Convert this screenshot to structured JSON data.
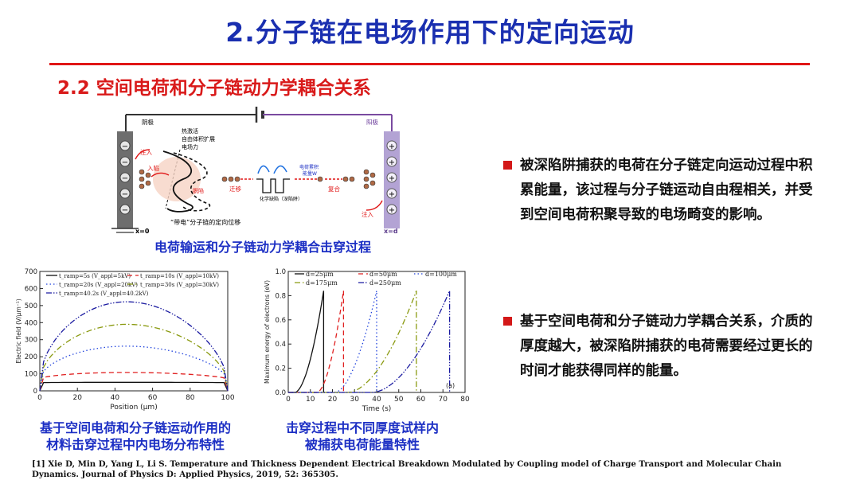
{
  "slide": {
    "title": "2.分子链在电场作用下的定向运动",
    "subtitle": "2.2 空间电荷和分子链动力学耦合关系"
  },
  "schematic": {
    "cathode_label": "阴极",
    "anode_label": "阳极",
    "x0_label": "x=0",
    "xd_label": "x=d",
    "inject_left": "注入",
    "inject_right": "注入",
    "trap_in": "入陷",
    "trap_out": "脱陷",
    "drift": "迁移",
    "recombine": "复合",
    "notes": [
      "热激活",
      "自由体积扩展",
      "电场力"
    ],
    "chem_trap": "化学缺陷（深陷阱）",
    "charge_energy": "电荷累积",
    "energy_w": "能量W",
    "chain_label": "“带电”分子链的定向位移",
    "caption": "电荷输运和分子链动力学耦合击穿过程"
  },
  "chart_a": {
    "caption_lines": [
      "基于空间电荷和分子链运动作用的",
      "材料击穿过程中内电场分布特性"
    ]
  },
  "chart_b": {
    "caption_lines": [
      "击穿过程中不同厚度试样内",
      "被捕获电荷能量特性"
    ]
  },
  "bullets": [
    {
      "text": "被深陷阱捕获的电荷在分子链定向运动过程中积累能量，该过程与分子链运动自由程相关，并受到空间电荷积聚导致的电场畸变的影响。"
    },
    {
      "text": "基于空间电荷和分子链动力学耦合关系，介质的厚度越大，被深陷阱捕获的电荷需要经过更长的时间才能获得同样的能量。"
    }
  ],
  "reference": "[1] Xie D, Min D, Yang L, Li S. Temperature and Thickness Dependent Electrical Breakdown Modulated by Coupling model of Charge Transport and Molecular Chain Dynamics. Journal of Physics D: Applied Physics, 2019, 52: 365305.",
  "colors": {
    "title": "#1a2fb0",
    "accent": "#e01616",
    "caption": "#1c2fc4"
  },
  "chart_data": [
    {
      "type": "line",
      "xlabel": "Position (μm)",
      "ylabel": "Electric field (V/μm⁻¹)",
      "xlim": [
        0,
        100
      ],
      "ylim": [
        0,
        700
      ],
      "xticks": [
        "0",
        "20",
        "40",
        "60",
        "80",
        "100"
      ],
      "yticks": [
        "0",
        "100",
        "200",
        "300",
        "400",
        "500",
        "600",
        "700"
      ],
      "legend_position": "top",
      "series": [
        {
          "name": "t_ramp=5s (V_appl=5kV)",
          "color": "#111111",
          "dash": "solid",
          "peak": 50,
          "edge": 48
        },
        {
          "name": "t_ramp=10s (V_appl=10kV)",
          "color": "#e02020",
          "dash": "dashed",
          "peak": 108,
          "edge": 68
        },
        {
          "name": "t_ramp=20s (V_appl=20kV)",
          "color": "#2244dd",
          "dash": "dotted",
          "peak": 262,
          "edge": 60
        },
        {
          "name": "t_ramp=30s (V_appl=30kV)",
          "color": "#8a9a10",
          "dash": "dashdot",
          "peak": 390,
          "edge": 45
        },
        {
          "name": "t_ramp=40.2s (V_appl=40.2kV)",
          "color": "#1a1aa0",
          "dash": "dashdotdot",
          "peak": 522,
          "edge": 40
        }
      ]
    },
    {
      "type": "line",
      "xlabel": "Time (s)",
      "ylabel": "Maximum energy of electrons (eV)",
      "xlim": [
        0,
        80
      ],
      "ylim": [
        0,
        1.0
      ],
      "xticks": [
        "0",
        "10",
        "20",
        "30",
        "40",
        "50",
        "60",
        "70",
        "80"
      ],
      "yticks": [
        "0.0",
        "0.2",
        "0.4",
        "0.6",
        "0.8",
        "1.0"
      ],
      "annotation": "(a)",
      "legend_position": "top",
      "series": [
        {
          "name": "d=25μm",
          "color": "#111111",
          "dash": "solid",
          "t_start": 3,
          "t_break": 16,
          "peak": 0.84
        },
        {
          "name": "d=50μm",
          "color": "#e02020",
          "dash": "dashed",
          "t_start": 13,
          "t_break": 25,
          "peak": 0.84
        },
        {
          "name": "d=100μm",
          "color": "#2244dd",
          "dash": "dotted",
          "t_start": 21,
          "t_break": 40,
          "peak": 0.84
        },
        {
          "name": "d=175μm",
          "color": "#8a9a10",
          "dash": "dashdot",
          "t_start": 27,
          "t_break": 58,
          "peak": 0.84
        },
        {
          "name": "d=250μm",
          "color": "#1a1aa0",
          "dash": "dashdotdot",
          "t_start": 38,
          "t_break": 73,
          "peak": 0.84
        }
      ]
    }
  ]
}
